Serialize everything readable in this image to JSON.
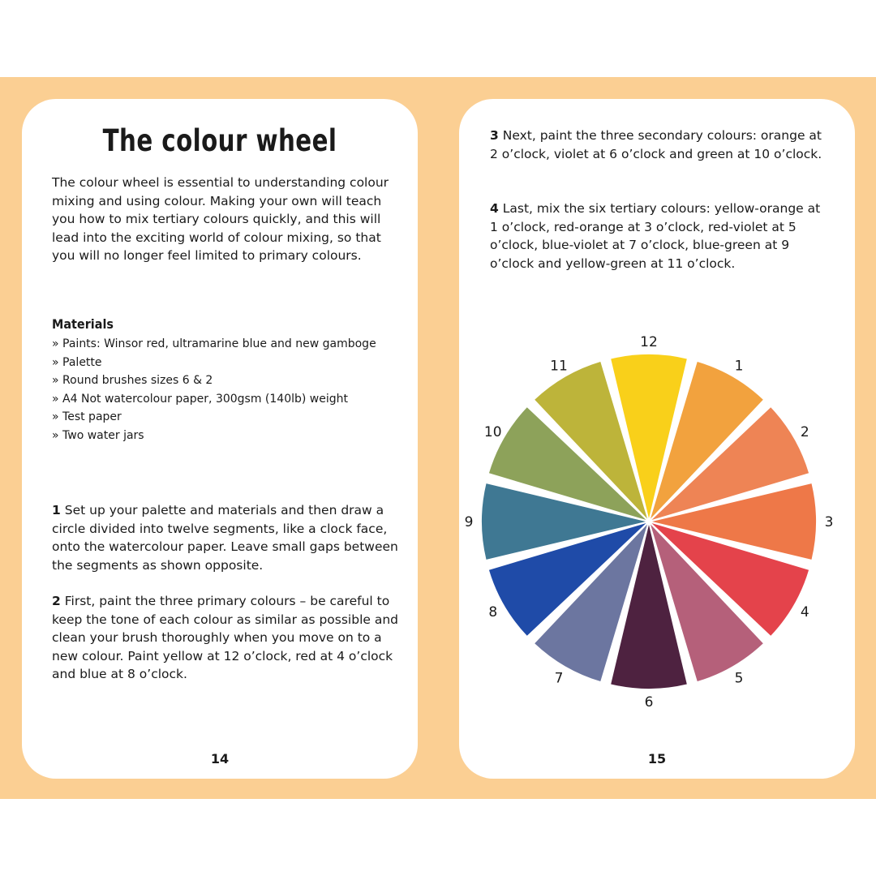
{
  "left_page": {
    "title": "The colour wheel",
    "intro": "The colour wheel is essential to understanding colour mixing and using colour. Making your own will teach you how to mix tertiary colours quickly, and this will lead into the exciting world of colour mixing, so that you will no longer feel limited to primary colours.",
    "materials_title": "Materials",
    "bullet": "»",
    "materials": [
      "Paints: Winsor red, ultramarine blue and new gamboge",
      "Palette",
      "Round brushes sizes 6 & 2",
      "A4 Not watercolour paper, 300gsm (140lb) weight",
      "Test paper",
      "Two water jars"
    ],
    "steps": [
      {
        "num": "1",
        "text": "Set up your palette and materials and then draw a circle divided into twelve segments, like a clock face, onto the watercolour paper. Leave small gaps between the segments as shown opposite."
      },
      {
        "num": "2",
        "text": "First, paint the three primary colours – be careful to keep the tone of each colour as similar as possible and clean your brush thoroughly when you move on to a new colour. Paint yellow at 12 o’clock, red at 4 o’clock and blue at 8 o’clock."
      }
    ],
    "page_number": "14"
  },
  "right_page": {
    "steps": [
      {
        "num": "3",
        "text": "Next, paint the three secondary colours: orange at 2 o’clock, violet at 6 o’clock and green at 10 o’clock."
      },
      {
        "num": "4",
        "text": "Last, mix the six tertiary colours: yellow-orange at 1 o’clock, red-orange at 3 o’clock, red-violet at 5 o’clock, blue-violet at 7 o’clock, blue-green at 9 o’clock and yellow-green at 11 o’clock."
      }
    ],
    "page_number": "15",
    "wheel": [
      {
        "label": "12",
        "color": "#F9D01A"
      },
      {
        "label": "1",
        "color": "#F2A23E"
      },
      {
        "label": "2",
        "color": "#EE8455"
      },
      {
        "label": "3",
        "color": "#EE7848"
      },
      {
        "label": "4",
        "color": "#E4434B"
      },
      {
        "label": "5",
        "color": "#B5607A"
      },
      {
        "label": "6",
        "color": "#4E2240"
      },
      {
        "label": "7",
        "color": "#6C76A0"
      },
      {
        "label": "8",
        "color": "#1F4BA8"
      },
      {
        "label": "9",
        "color": "#3F7893"
      },
      {
        "label": "10",
        "color": "#8DA25A"
      },
      {
        "label": "11",
        "color": "#BDB43A"
      }
    ]
  },
  "colors": {
    "background_band": "#FBCF93",
    "card": "#FFFFFF"
  }
}
